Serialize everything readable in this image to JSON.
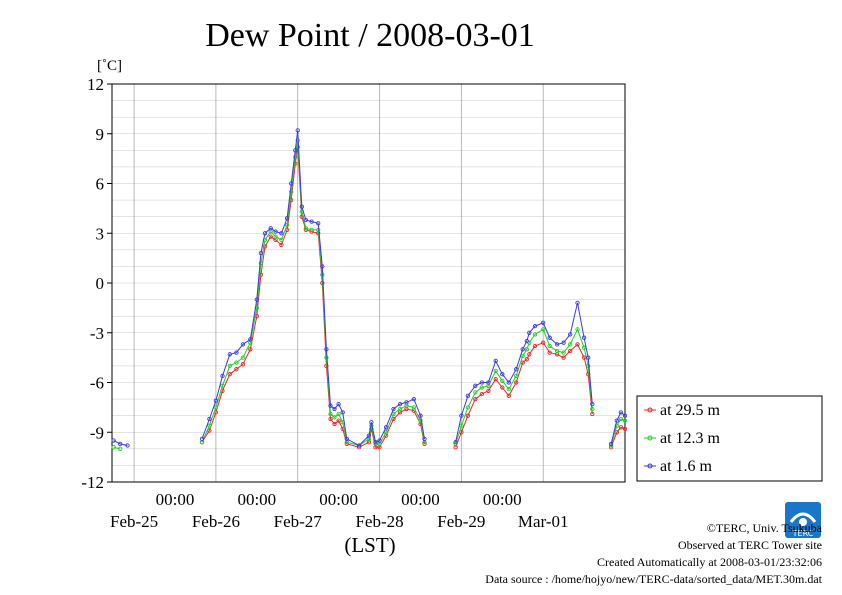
{
  "chart_data": {
    "type": "line",
    "title": "Dew Point / 2008-03-01",
    "ylabel": "[˚C]",
    "xlabel": "(LST)",
    "ylim": [
      -12,
      12
    ],
    "yticks": [
      -12,
      -9,
      -6,
      -3,
      0,
      3,
      6,
      9,
      12
    ],
    "xlim_days": [
      -0.27,
      6.0
    ],
    "time_ticks": [
      "00:00",
      "00:00",
      "00:00",
      "00:00",
      "00:00"
    ],
    "date_labels": [
      "Feb-25",
      "Feb-26",
      "Feb-27",
      "Feb-28",
      "Feb-29",
      "Mar-01"
    ],
    "grid": true,
    "legend_position": "lower-right-outside",
    "series": [
      {
        "name": "at 29.5 m",
        "color": "#e8262a",
        "points": [
          [
            0.83,
            -9.6
          ],
          [
            0.92,
            -8.9
          ],
          [
            1.0,
            -7.8
          ],
          [
            1.08,
            -6.5
          ],
          [
            1.17,
            -5.5
          ],
          [
            1.25,
            -5.2
          ],
          [
            1.33,
            -4.9
          ],
          [
            1.42,
            -4.0
          ],
          [
            1.5,
            -2.0
          ],
          [
            1.55,
            0.5
          ],
          [
            1.6,
            2.2
          ],
          [
            1.67,
            2.8
          ],
          [
            1.73,
            2.6
          ],
          [
            1.8,
            2.3
          ],
          [
            1.87,
            3.2
          ],
          [
            1.92,
            5.0
          ],
          [
            1.97,
            7.2
          ],
          [
            2.0,
            8.2
          ],
          [
            2.05,
            4.0
          ],
          [
            2.1,
            3.2
          ],
          [
            2.17,
            3.1
          ],
          [
            2.25,
            3.0
          ],
          [
            2.3,
            0.0
          ],
          [
            2.35,
            -5.0
          ],
          [
            2.4,
            -8.2
          ],
          [
            2.45,
            -8.5
          ],
          [
            2.5,
            -8.3
          ],
          [
            2.55,
            -8.8
          ],
          [
            2.6,
            -9.7
          ],
          [
            2.75,
            -9.9
          ],
          [
            2.87,
            -9.6
          ],
          [
            2.9,
            -8.8
          ],
          [
            2.95,
            -9.9
          ],
          [
            3.0,
            -9.9
          ],
          [
            3.08,
            -9.2
          ],
          [
            3.17,
            -8.2
          ],
          [
            3.25,
            -7.8
          ],
          [
            3.33,
            -7.6
          ],
          [
            3.42,
            -7.7
          ],
          [
            3.5,
            -8.5
          ],
          [
            3.55,
            -9.7
          ],
          [
            3.93,
            -9.9
          ],
          [
            4.0,
            -9.0
          ],
          [
            4.08,
            -8.0
          ],
          [
            4.17,
            -7.0
          ],
          [
            4.25,
            -6.7
          ],
          [
            4.33,
            -6.5
          ],
          [
            4.42,
            -5.8
          ],
          [
            4.5,
            -6.3
          ],
          [
            4.58,
            -6.8
          ],
          [
            4.67,
            -6.0
          ],
          [
            4.75,
            -4.8
          ],
          [
            4.8,
            -4.6
          ],
          [
            4.83,
            -4.3
          ],
          [
            4.9,
            -3.8
          ],
          [
            5.0,
            -3.6
          ],
          [
            5.08,
            -4.2
          ],
          [
            5.17,
            -4.3
          ],
          [
            5.25,
            -4.5
          ],
          [
            5.33,
            -4.1
          ],
          [
            5.42,
            -3.7
          ],
          [
            5.5,
            -4.5
          ],
          [
            5.55,
            -5.5
          ],
          [
            5.6,
            -7.9
          ],
          [
            5.83,
            -9.9
          ],
          [
            5.9,
            -9.0
          ],
          [
            5.95,
            -8.7
          ],
          [
            6.0,
            -8.8
          ]
        ]
      },
      {
        "name": "at 12.3 m",
        "color": "#22d022",
        "points": [
          [
            -0.25,
            -9.9
          ],
          [
            -0.17,
            -10.0
          ],
          [
            0.83,
            -9.6
          ],
          [
            0.92,
            -8.6
          ],
          [
            1.0,
            -7.5
          ],
          [
            1.08,
            -6.2
          ],
          [
            1.17,
            -5.0
          ],
          [
            1.25,
            -4.8
          ],
          [
            1.33,
            -4.5
          ],
          [
            1.42,
            -3.6
          ],
          [
            1.5,
            -1.5
          ],
          [
            1.55,
            1.2
          ],
          [
            1.6,
            2.6
          ],
          [
            1.67,
            3.1
          ],
          [
            1.73,
            2.8
          ],
          [
            1.8,
            2.6
          ],
          [
            1.87,
            3.5
          ],
          [
            1.92,
            5.5
          ],
          [
            1.97,
            7.6
          ],
          [
            2.0,
            8.6
          ],
          [
            2.05,
            4.3
          ],
          [
            2.1,
            3.3
          ],
          [
            2.17,
            3.2
          ],
          [
            2.25,
            3.2
          ],
          [
            2.3,
            0.5
          ],
          [
            2.35,
            -4.5
          ],
          [
            2.4,
            -7.9
          ],
          [
            2.45,
            -8.1
          ],
          [
            2.5,
            -7.9
          ],
          [
            2.55,
            -8.4
          ],
          [
            2.6,
            -9.6
          ],
          [
            2.75,
            -9.8
          ],
          [
            2.87,
            -9.4
          ],
          [
            2.9,
            -8.6
          ],
          [
            2.95,
            -9.7
          ],
          [
            3.0,
            -9.7
          ],
          [
            3.08,
            -9.0
          ],
          [
            3.17,
            -7.9
          ],
          [
            3.25,
            -7.6
          ],
          [
            3.33,
            -7.4
          ],
          [
            3.42,
            -7.5
          ],
          [
            3.5,
            -8.3
          ],
          [
            3.55,
            -9.6
          ],
          [
            3.93,
            -9.7
          ],
          [
            4.0,
            -8.6
          ],
          [
            4.08,
            -7.5
          ],
          [
            4.17,
            -6.6
          ],
          [
            4.25,
            -6.3
          ],
          [
            4.33,
            -6.2
          ],
          [
            4.42,
            -5.3
          ],
          [
            4.5,
            -5.9
          ],
          [
            4.58,
            -6.4
          ],
          [
            4.67,
            -5.6
          ],
          [
            4.75,
            -4.4
          ],
          [
            4.8,
            -4.0
          ],
          [
            4.83,
            -3.6
          ],
          [
            4.9,
            -3.1
          ],
          [
            5.0,
            -2.8
          ],
          [
            5.08,
            -3.8
          ],
          [
            5.17,
            -4.1
          ],
          [
            5.25,
            -4.2
          ],
          [
            5.33,
            -3.7
          ],
          [
            5.42,
            -2.8
          ],
          [
            5.5,
            -3.9
          ],
          [
            5.55,
            -5.0
          ],
          [
            5.6,
            -7.6
          ],
          [
            5.83,
            -9.8
          ],
          [
            5.9,
            -8.6
          ],
          [
            5.95,
            -8.2
          ],
          [
            6.0,
            -8.3
          ]
        ]
      },
      {
        "name": "at 1.6 m",
        "color": "#3a3ae6",
        "points": [
          [
            -0.25,
            -9.5
          ],
          [
            -0.17,
            -9.7
          ],
          [
            -0.08,
            -9.8
          ],
          [
            0.83,
            -9.4
          ],
          [
            0.92,
            -8.2
          ],
          [
            1.0,
            -7.1
          ],
          [
            1.08,
            -5.6
          ],
          [
            1.17,
            -4.3
          ],
          [
            1.25,
            -4.2
          ],
          [
            1.33,
            -3.7
          ],
          [
            1.42,
            -3.4
          ],
          [
            1.5,
            -1.0
          ],
          [
            1.55,
            1.8
          ],
          [
            1.6,
            3.0
          ],
          [
            1.67,
            3.3
          ],
          [
            1.73,
            3.1
          ],
          [
            1.8,
            3.0
          ],
          [
            1.87,
            3.9
          ],
          [
            1.92,
            6.0
          ],
          [
            1.97,
            8.0
          ],
          [
            2.0,
            9.2
          ],
          [
            2.05,
            4.6
          ],
          [
            2.1,
            3.8
          ],
          [
            2.17,
            3.7
          ],
          [
            2.25,
            3.6
          ],
          [
            2.3,
            1.0
          ],
          [
            2.35,
            -4.0
          ],
          [
            2.4,
            -7.4
          ],
          [
            2.45,
            -7.6
          ],
          [
            2.5,
            -7.3
          ],
          [
            2.55,
            -7.8
          ],
          [
            2.6,
            -9.4
          ],
          [
            2.75,
            -9.8
          ],
          [
            2.87,
            -9.2
          ],
          [
            2.9,
            -8.4
          ],
          [
            2.95,
            -9.6
          ],
          [
            3.0,
            -9.5
          ],
          [
            3.08,
            -8.7
          ],
          [
            3.17,
            -7.6
          ],
          [
            3.25,
            -7.3
          ],
          [
            3.33,
            -7.2
          ],
          [
            3.42,
            -7.0
          ],
          [
            3.5,
            -8.0
          ],
          [
            3.55,
            -9.4
          ],
          [
            3.93,
            -9.6
          ],
          [
            4.0,
            -8.0
          ],
          [
            4.08,
            -6.8
          ],
          [
            4.17,
            -6.2
          ],
          [
            4.25,
            -6.0
          ],
          [
            4.33,
            -6.0
          ],
          [
            4.42,
            -4.7
          ],
          [
            4.5,
            -5.5
          ],
          [
            4.58,
            -6.0
          ],
          [
            4.67,
            -5.2
          ],
          [
            4.75,
            -4.0
          ],
          [
            4.8,
            -3.5
          ],
          [
            4.83,
            -3.0
          ],
          [
            4.9,
            -2.6
          ],
          [
            5.0,
            -2.4
          ],
          [
            5.08,
            -3.3
          ],
          [
            5.17,
            -3.7
          ],
          [
            5.25,
            -3.6
          ],
          [
            5.33,
            -3.1
          ],
          [
            5.42,
            -1.2
          ],
          [
            5.5,
            -3.3
          ],
          [
            5.55,
            -4.5
          ],
          [
            5.6,
            -7.3
          ],
          [
            5.83,
            -9.7
          ],
          [
            5.9,
            -8.3
          ],
          [
            5.95,
            -7.8
          ],
          [
            6.0,
            -8.0
          ]
        ]
      }
    ]
  },
  "footer": {
    "copyright": "©TERC, Univ. Tsukuba",
    "observed": "Observed at TERC Tower site",
    "created": "Created Automatically at 2008-03-01/23:32:06",
    "source": "Data source : /home/hojyo/new/TERC-data/sorted_data/MET.30m.dat",
    "logo_text": "TERC"
  }
}
